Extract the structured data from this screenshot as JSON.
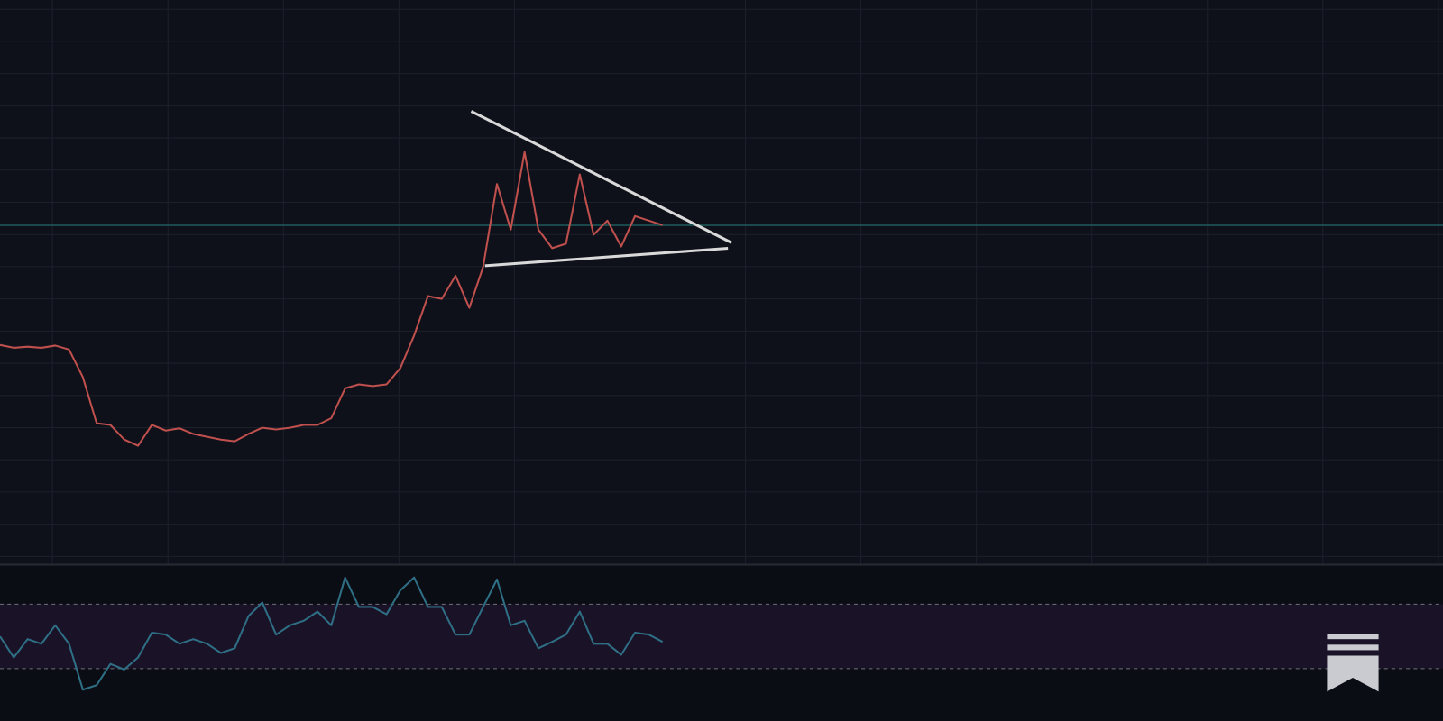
{
  "chart_data": [
    {
      "type": "line",
      "color": "#c0504d",
      "grid": true,
      "ylim": [
        0,
        100
      ],
      "categories": [
        null,
        null,
        null,
        null,
        null,
        null,
        null,
        null,
        null,
        null,
        null,
        null,
        null,
        null,
        null,
        null,
        null,
        null,
        null,
        null,
        null,
        null,
        null,
        null,
        null,
        null,
        null,
        null,
        null,
        null,
        null,
        null,
        null,
        null,
        null,
        null,
        null,
        null,
        null,
        null,
        null,
        null,
        null,
        null,
        null,
        null,
        null,
        null,
        null
      ],
      "values": [
        38.7,
        38.2,
        38.4,
        38.2,
        38.6,
        37.9,
        33.0,
        24.8,
        24.5,
        21.9,
        20.8,
        24.5,
        23.5,
        23.9,
        22.9,
        22.4,
        21.9,
        21.6,
        22.9,
        24.0,
        23.7,
        24.0,
        24.5,
        24.5,
        25.7,
        31.0,
        31.7,
        31.4,
        31.7,
        34.6,
        40.4,
        47.4,
        46.9,
        51.0,
        45.3,
        52.6,
        67.3,
        59.2,
        73.0,
        59.2,
        55.9,
        56.7,
        69.0,
        58.3,
        60.8,
        56.2,
        61.6,
        60.8,
        60.0
      ]
    },
    {
      "type": "line",
      "color": "#2f6f86",
      "ylim": [
        0,
        100
      ],
      "categories": [
        null,
        null,
        null,
        null,
        null,
        null,
        null,
        null,
        null,
        null,
        null,
        null,
        null,
        null,
        null,
        null,
        null,
        null,
        null,
        null,
        null,
        null,
        null,
        null,
        null,
        null,
        null,
        null,
        null,
        null,
        null,
        null,
        null,
        null,
        null,
        null,
        null,
        null,
        null,
        null,
        null,
        null,
        null,
        null,
        null,
        null,
        null,
        null,
        null
      ],
      "values": [
        50,
        36.9,
        48.3,
        45.4,
        56.9,
        45.4,
        16.9,
        19.7,
        32.9,
        29.4,
        36.9,
        52.3,
        51.1,
        45.4,
        48.3,
        45.4,
        39.7,
        42.6,
        62.6,
        71.1,
        51.1,
        56.9,
        59.7,
        65.4,
        56.9,
        86.6,
        68.3,
        68.3,
        63.7,
        78.6,
        86.6,
        68.3,
        68.3,
        51.1,
        51.1,
        68.3,
        85.4,
        56.9,
        59.7,
        42.6,
        46.6,
        51.1,
        65.4,
        45.4,
        45.4,
        38.6,
        52.3,
        51.1,
        46.6
      ]
    }
  ]
}
